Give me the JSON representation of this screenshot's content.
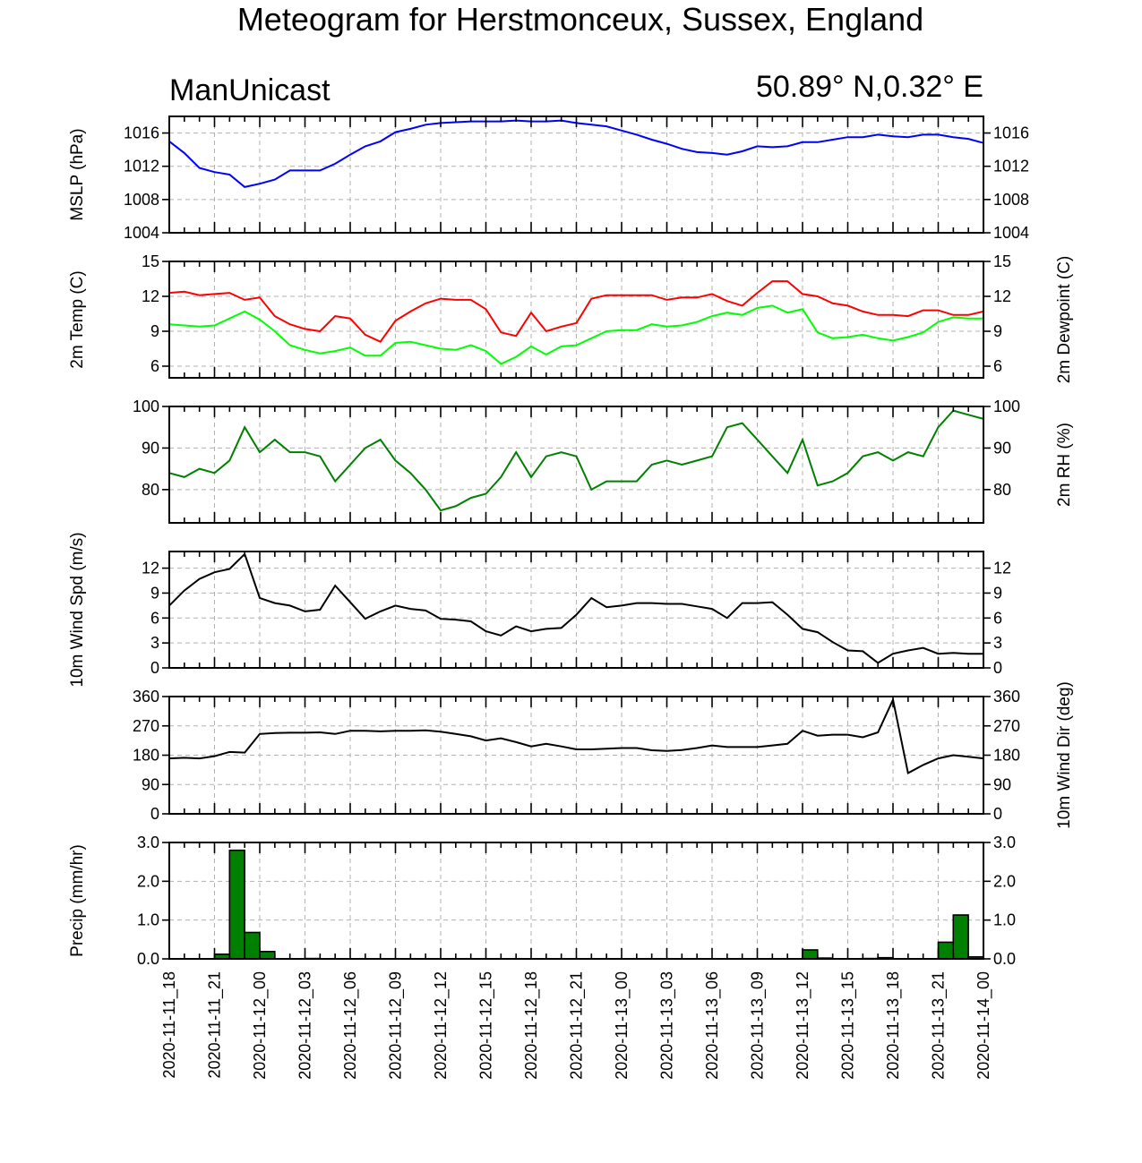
{
  "title": "Meteogram for Herstmonceux, Sussex, England",
  "model": "ManUnicast",
  "location": "50.89° N,0.32° E",
  "chart_data": {
    "type": "line",
    "x_ticks": [
      "2020-11-11_18",
      "2020-11-11_21",
      "2020-11-12_00",
      "2020-11-12_03",
      "2020-11-12_06",
      "2020-11-12_09",
      "2020-11-12_12",
      "2020-11-12_15",
      "2020-11-12_18",
      "2020-11-12_21",
      "2020-11-13_00",
      "2020-11-13_03",
      "2020-11-13_06",
      "2020-11-13_09",
      "2020-11-13_12",
      "2020-11-13_15",
      "2020-11-13_18",
      "2020-11-13_21",
      "2020-11-14_00"
    ],
    "x_hours_start": "2020-11-11_18",
    "x_step_hours": 1,
    "panels": [
      {
        "id": "mslp",
        "ylabel_left": "MSLP (hPa)",
        "ylabel_right": "",
        "ylim": [
          1004,
          1018
        ],
        "yticks": [
          1004,
          1008,
          1012,
          1016
        ],
        "tick_labels_right": true,
        "series": [
          {
            "color": "#0000ff",
            "values": [
              1015.0,
              1013.6,
              1011.8,
              1011.3,
              1011.0,
              1009.5,
              1009.9,
              1010.4,
              1011.5,
              1011.5,
              1011.5,
              1012.3,
              1013.4,
              1014.4,
              1015.0,
              1016.1,
              1016.5,
              1017.0,
              1017.2,
              1017.3,
              1017.4,
              1017.4,
              1017.4,
              1017.5,
              1017.4,
              1017.4,
              1017.5,
              1017.2,
              1017.0,
              1016.8,
              1016.3,
              1015.8,
              1015.2,
              1014.7,
              1014.1,
              1013.7,
              1013.6,
              1013.4,
              1013.8,
              1014.4,
              1014.3,
              1014.4,
              1014.9,
              1014.9,
              1015.2,
              1015.5,
              1015.5,
              1015.8,
              1015.6,
              1015.5,
              1015.8,
              1015.8,
              1015.5,
              1015.3,
              1014.8
            ]
          }
        ]
      },
      {
        "id": "temp",
        "ylabel_left": "2m Temp (C)",
        "ylabel_right": "2m Dewpoint (C)",
        "ylim": [
          5,
          15
        ],
        "yticks": [
          6,
          9,
          12,
          15
        ],
        "tick_labels_right": true,
        "series": [
          {
            "color": "#ff0000",
            "values": [
              12.3,
              12.4,
              12.1,
              12.2,
              12.3,
              11.7,
              11.9,
              10.3,
              9.6,
              9.2,
              9.0,
              10.3,
              10.1,
              8.7,
              8.1,
              9.9,
              10.7,
              11.4,
              11.8,
              11.7,
              11.7,
              10.9,
              8.9,
              8.6,
              10.6,
              9.0,
              9.4,
              9.7,
              11.8,
              12.1,
              12.1,
              12.1,
              12.1,
              11.7,
              11.9,
              11.9,
              12.2,
              11.6,
              11.2,
              12.3,
              13.3,
              13.3,
              12.2,
              12.0,
              11.4,
              11.2,
              10.7,
              10.4,
              10.4,
              10.3,
              10.8,
              10.8,
              10.4,
              10.4,
              10.7
            ]
          },
          {
            "color": "#00ff00",
            "values": [
              9.6,
              9.5,
              9.4,
              9.5,
              10.1,
              10.7,
              10.0,
              9.0,
              7.8,
              7.4,
              7.1,
              7.3,
              7.6,
              6.9,
              6.9,
              8.0,
              8.1,
              7.8,
              7.5,
              7.4,
              7.8,
              7.3,
              6.2,
              6.8,
              7.7,
              7.0,
              7.7,
              7.8,
              8.4,
              9.0,
              9.1,
              9.1,
              9.6,
              9.4,
              9.5,
              9.8,
              10.3,
              10.6,
              10.4,
              11.0,
              11.2,
              10.6,
              10.9,
              8.9,
              8.4,
              8.5,
              8.7,
              8.4,
              8.2,
              8.5,
              8.9,
              9.8,
              10.2,
              10.1,
              10.1
            ]
          }
        ]
      },
      {
        "id": "rh",
        "ylabel_left": "",
        "ylabel_right": "2m RH (%)",
        "ylim": [
          72,
          100
        ],
        "yticks": [
          80,
          90,
          100
        ],
        "tick_labels_right": true,
        "series": [
          {
            "color": "#008000",
            "values": [
              84,
              83,
              85,
              84,
              87,
              95,
              89,
              92,
              89,
              89,
              88,
              82,
              86,
              90,
              92,
              87,
              84,
              80,
              75,
              76,
              78,
              79,
              83,
              89,
              83,
              88,
              89,
              88,
              80,
              82,
              82,
              82,
              86,
              87,
              86,
              87,
              88,
              95,
              96,
              92,
              88,
              84,
              92,
              81,
              82,
              84,
              88,
              89,
              87,
              89,
              88,
              95,
              99,
              98,
              97
            ]
          }
        ]
      },
      {
        "id": "wspd",
        "ylabel_left": "10m Wind Spd (m/s)",
        "ylabel_right": "",
        "ylim": [
          0,
          14
        ],
        "yticks": [
          0,
          3,
          6,
          9,
          12
        ],
        "tick_labels_right": true,
        "series": [
          {
            "color": "#000000",
            "values": [
              7.5,
              9.3,
              10.7,
              11.5,
              11.9,
              13.7,
              8.4,
              7.8,
              7.5,
              6.8,
              7.0,
              9.9,
              7.9,
              5.9,
              6.8,
              7.5,
              7.1,
              6.9,
              5.9,
              5.8,
              5.6,
              4.4,
              3.9,
              5.0,
              4.4,
              4.7,
              4.8,
              6.4,
              8.4,
              7.3,
              7.5,
              7.8,
              7.8,
              7.7,
              7.7,
              7.4,
              7.1,
              6.0,
              7.8,
              7.8,
              7.9,
              6.4,
              4.7,
              4.3,
              3.1,
              2.1,
              2.0,
              0.6,
              1.7,
              2.1,
              2.4,
              1.7,
              1.8,
              1.7,
              1.7
            ]
          }
        ]
      },
      {
        "id": "wdir",
        "ylabel_left": "",
        "ylabel_right": "10m Wind Dir (deg)",
        "ylim": [
          0,
          360
        ],
        "yticks": [
          0,
          90,
          180,
          270,
          360
        ],
        "tick_labels_right": true,
        "series": [
          {
            "color": "#000000",
            "values": [
              170,
              172,
              170,
              177,
              190,
              188,
              245,
              248,
              249,
              249,
              250,
              245,
              255,
              255,
              253,
              255,
              255,
              256,
              252,
              245,
              238,
              225,
              232,
              220,
              207,
              215,
              207,
              198,
              198,
              200,
              202,
              202,
              195,
              193,
              196,
              202,
              210,
              205,
              205,
              205,
              210,
              215,
              255,
              240,
              243,
              243,
              235,
              250,
              350,
              125,
              150,
              170,
              180,
              175,
              170
            ]
          }
        ]
      },
      {
        "id": "precip",
        "ylabel_left": "Precip (mm/hr)",
        "ylabel_right": "",
        "ylim": [
          0,
          3
        ],
        "yticks": [
          0.0,
          1.0,
          2.0,
          3.0
        ],
        "tick_labels_right": true,
        "bars": {
          "color": "#008000",
          "values": [
            0,
            0,
            0,
            0.12,
            2.8,
            0.68,
            0.19,
            0,
            0,
            0.01,
            0,
            0,
            0,
            0,
            0,
            0,
            0,
            0,
            0,
            0,
            0,
            0,
            0,
            0,
            0,
            0,
            0,
            0,
            0,
            0,
            0,
            0,
            0,
            0,
            0,
            0,
            0,
            0,
            0,
            0,
            0,
            0,
            0.23,
            0.02,
            0,
            0,
            0.01,
            0.03,
            0,
            0,
            0,
            0.43,
            1.13,
            0.05,
            0
          ]
        }
      }
    ],
    "grid": true
  }
}
